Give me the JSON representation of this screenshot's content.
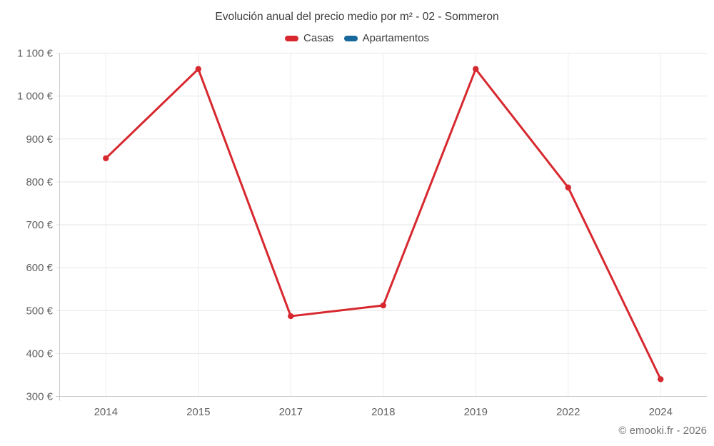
{
  "chart": {
    "title": "Evolución anual del precio medio por m² - 02 - Sommeron"
  },
  "footer": {
    "copyright": "© emooki.fr - 2026"
  },
  "colors": {
    "casas": "#d7282f",
    "apartamentos": "#17699c",
    "gridline": "#e6e6e6",
    "vertical_gridline": "#ededed",
    "axis_line": "#c9c9c9",
    "title_text": "#3c3c3c",
    "axis_text": "#616161",
    "footer_text": "#757575"
  },
  "chart_data": {
    "type": "line",
    "title": "Evolución anual del precio medio por m² - 02 - Sommeron",
    "categories": [
      "2014",
      "2015",
      "2017",
      "2018",
      "2019",
      "2022",
      "2024"
    ],
    "series": [
      {
        "name": "Casas",
        "color": "#d7282f",
        "values": [
          855,
          1063,
          487,
          512,
          1063,
          787,
          340
        ]
      },
      {
        "name": "Apartamentos",
        "color": "#17699c",
        "values": []
      }
    ],
    "yticks": [
      300,
      400,
      500,
      600,
      700,
      800,
      900,
      1000,
      1100
    ],
    "ytick_labels": [
      "300 €",
      "400 €",
      "500 €",
      "600 €",
      "700 €",
      "800 €",
      "900 €",
      "1 000 €",
      "1 100 €"
    ],
    "ylim": [
      300,
      1100
    ],
    "xlabel": "",
    "ylabel": "",
    "grid": true,
    "legend_position": "top",
    "marker": "circle"
  }
}
